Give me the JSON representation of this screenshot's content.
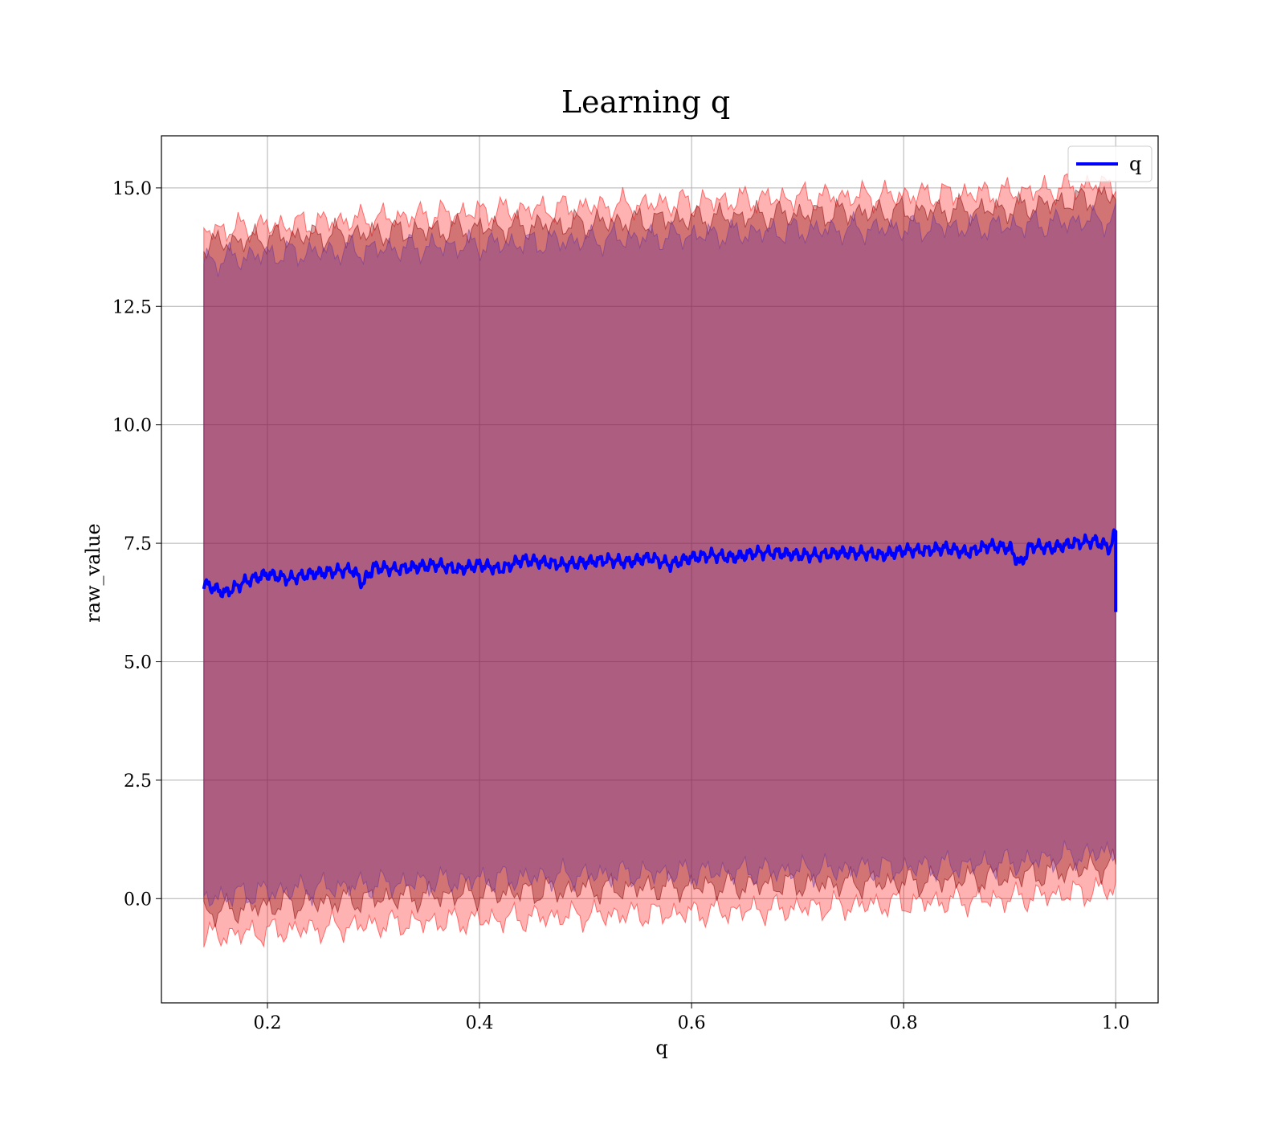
{
  "chart_data": {
    "type": "line",
    "title": "Learning q",
    "xlabel": "q",
    "ylabel": "raw_value",
    "xlim": [
      0.1,
      1.04
    ],
    "ylim": [
      -2.2,
      16.1
    ],
    "xticks": [
      0.2,
      0.4,
      0.6,
      0.8,
      1.0
    ],
    "xtick_labels": [
      "0.2",
      "0.4",
      "0.6",
      "0.8",
      "1.0"
    ],
    "yticks": [
      0.0,
      2.5,
      5.0,
      7.5,
      10.0,
      12.5,
      15.0
    ],
    "ytick_labels": [
      "0.0",
      "2.5",
      "5.0",
      "7.5",
      "10.0",
      "12.5",
      "15.0"
    ],
    "grid": true,
    "legend_position": "top-right",
    "series": [
      {
        "name": "q",
        "color": "#0000ff",
        "x": [
          0.14,
          0.16,
          0.18,
          0.2,
          0.22,
          0.24,
          0.26,
          0.28,
          0.29,
          0.3,
          0.32,
          0.34,
          0.36,
          0.38,
          0.4,
          0.42,
          0.44,
          0.46,
          0.48,
          0.5,
          0.52,
          0.54,
          0.56,
          0.58,
          0.6,
          0.62,
          0.64,
          0.66,
          0.68,
          0.7,
          0.72,
          0.74,
          0.76,
          0.78,
          0.8,
          0.82,
          0.84,
          0.86,
          0.88,
          0.9,
          0.91,
          0.92,
          0.94,
          0.96,
          0.98,
          0.995,
          1.0,
          1.0
        ],
        "values": [
          6.65,
          6.45,
          6.7,
          6.85,
          6.75,
          6.85,
          6.9,
          6.95,
          6.65,
          7.0,
          6.95,
          7.0,
          7.05,
          6.95,
          7.05,
          6.95,
          7.15,
          7.1,
          7.05,
          7.1,
          7.15,
          7.1,
          7.2,
          7.05,
          7.2,
          7.25,
          7.2,
          7.3,
          7.3,
          7.25,
          7.25,
          7.3,
          7.3,
          7.25,
          7.35,
          7.35,
          7.4,
          7.3,
          7.45,
          7.4,
          7.05,
          7.45,
          7.4,
          7.5,
          7.55,
          7.4,
          7.75,
          6.05
        ]
      }
    ],
    "bands": [
      {
        "color": "#ff0000",
        "opacity": 0.3,
        "x": [
          0.14,
          0.2,
          0.3,
          0.4,
          0.5,
          0.6,
          0.7,
          0.8,
          0.9,
          1.0
        ],
        "lower": [
          -0.8,
          -0.7,
          -0.55,
          -0.45,
          -0.35,
          -0.3,
          -0.2,
          -0.1,
          0.0,
          0.2
        ],
        "upper": [
          14.1,
          14.2,
          14.35,
          14.5,
          14.6,
          14.7,
          14.8,
          14.85,
          14.9,
          15.1
        ]
      },
      {
        "color": "#800000",
        "opacity": 0.35,
        "x": [
          0.14,
          0.2,
          0.3,
          0.4,
          0.5,
          0.6,
          0.7,
          0.8,
          0.9,
          1.0
        ],
        "lower": [
          -0.3,
          -0.15,
          0.0,
          0.1,
          0.2,
          0.25,
          0.3,
          0.35,
          0.45,
          0.7
        ],
        "upper": [
          13.8,
          13.95,
          14.05,
          14.15,
          14.25,
          14.35,
          14.45,
          14.5,
          14.55,
          14.85
        ]
      },
      {
        "color": "#663399",
        "opacity": 0.35,
        "x": [
          0.14,
          0.2,
          0.3,
          0.4,
          0.5,
          0.6,
          0.7,
          0.8,
          0.9,
          1.0
        ],
        "lower": [
          0.0,
          0.15,
          0.3,
          0.4,
          0.5,
          0.55,
          0.6,
          0.65,
          0.75,
          1.0
        ],
        "upper": [
          13.45,
          13.6,
          13.7,
          13.8,
          13.9,
          14.0,
          14.1,
          14.15,
          14.2,
          14.35
        ]
      }
    ]
  }
}
